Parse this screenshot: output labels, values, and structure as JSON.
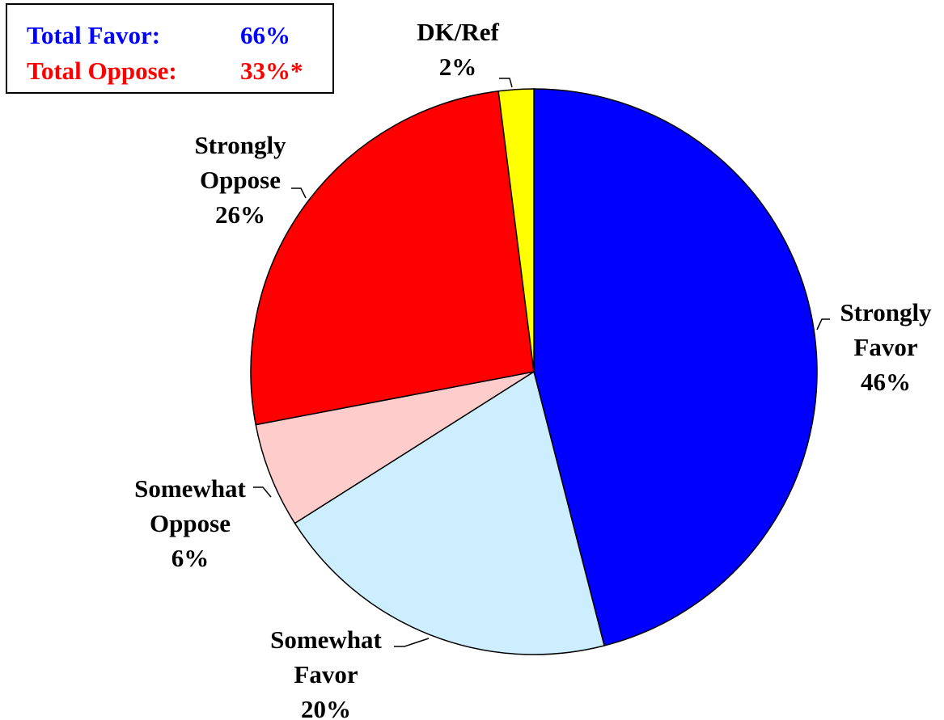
{
  "chart_data": {
    "type": "pie",
    "categories": [
      "Strongly Favor",
      "Somewhat Favor",
      "Somewhat Oppose",
      "Strongly Oppose",
      "DK/Ref"
    ],
    "values": [
      46,
      20,
      6,
      26,
      2
    ],
    "value_labels": [
      "46%",
      "20%",
      "6%",
      "26%",
      "2%"
    ],
    "colors": [
      "#0000ff",
      "#cceeff",
      "#ffcccc",
      "#ff0000",
      "#ffff00"
    ],
    "summary": [
      {
        "label": "Total Favor:",
        "value_label": "66%",
        "color": "#0000ff"
      },
      {
        "label": "Total Oppose:",
        "value_label": "33%*",
        "color": "#ff0000"
      }
    ]
  }
}
